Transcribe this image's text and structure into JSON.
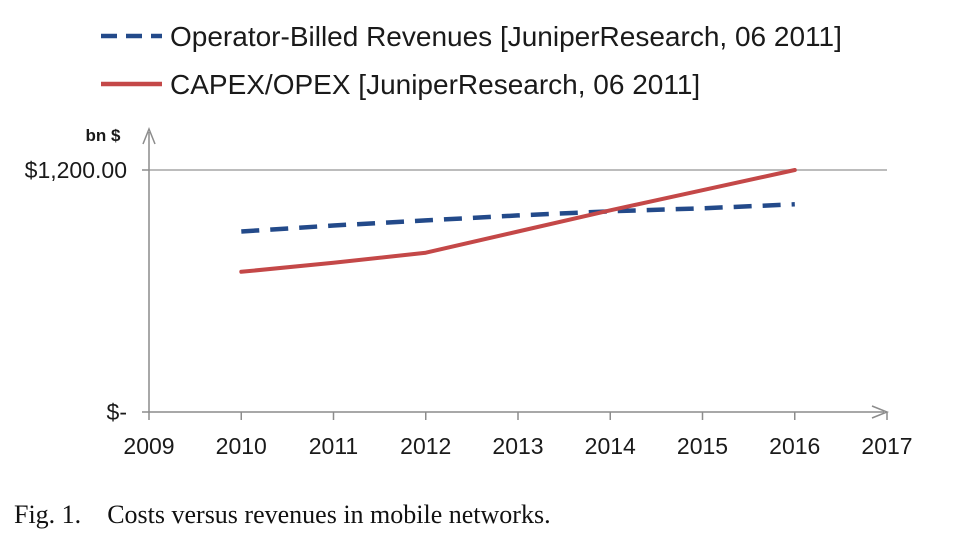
{
  "chart_data": {
    "type": "line",
    "x": [
      2010,
      2011,
      2012,
      2013,
      2014,
      2015,
      2016
    ],
    "xticks": [
      "2009",
      "2010",
      "2011",
      "2012",
      "2013",
      "2014",
      "2015",
      "2016",
      "2017"
    ],
    "xlim": [
      2009,
      2017
    ],
    "ylim": [
      0,
      1200
    ],
    "yticks": [
      {
        "value": 0,
        "label": "$-"
      },
      {
        "value": 1200,
        "label": "$1,200.00"
      }
    ],
    "ylabel": "bn $",
    "xlabel": "",
    "grid": "horizontal",
    "legend_position": "top",
    "series": [
      {
        "name": "Operator-Billed Revenues [JuniperResearch, 06 2011]",
        "values": [
          895,
          925,
          950,
          975,
          995,
          1010,
          1030
        ],
        "color": "#234a8a",
        "style": "dashed"
      },
      {
        "name": "CAPEX/OPEX [JuniperResearch, 06 2011]",
        "values": [
          695,
          740,
          790,
          895,
          1000,
          1100,
          1200
        ],
        "color": "#c44848",
        "style": "solid"
      }
    ]
  },
  "caption": {
    "label": "Fig. 1.",
    "text": "Costs versus revenues in mobile networks."
  }
}
